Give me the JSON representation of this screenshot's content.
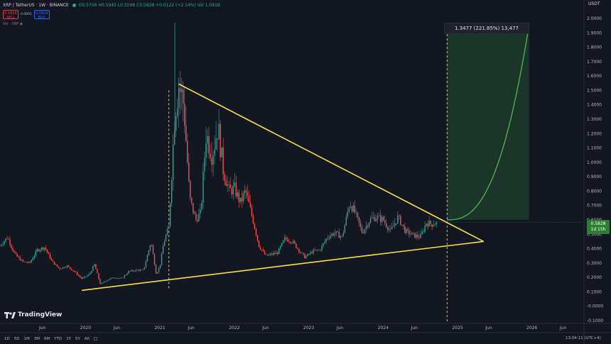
{
  "header": {
    "title": "XRP / TetherUS · 1W · BINANCE",
    "ohlc": "O0.5706 H0.5945 L0.5598 C0.5828 +0.0122 (+2.14%) Vol 1.091B"
  },
  "trade": {
    "sell_price": "0.5828",
    "sell_label": "SELL",
    "spread": "0.0001",
    "buy_price": "0.5829",
    "buy_label": "BUY"
  },
  "volume_label": "Vol · XRP",
  "currency": "USDT",
  "projection_label": "1.3477 (221.85%) 13,477",
  "last_price": {
    "value": "0.5828",
    "countdown": "1d 15h"
  },
  "brand": "TradingView",
  "range_buttons": [
    "1D",
    "5D",
    "1M",
    "3M",
    "6M",
    "YTD",
    "1Y",
    "5Y",
    "All"
  ],
  "clock": "13:04:11 (UTC+4)",
  "colors": {
    "up": "#26a69a",
    "down": "#ef5350",
    "trend": "#f5e14c",
    "projection_fill": "#1f3b2c",
    "projection_curve": "#4caf50"
  },
  "icons": [
    "eye-icon",
    "calendar-icon",
    "tradingview-logo-icon"
  ],
  "chart_data": {
    "type": "candlestick",
    "y_ticks": [
      "2.0000",
      "1.9000",
      "1.8000",
      "1.7000",
      "1.6000",
      "1.5000",
      "1.4000",
      "1.3000",
      "1.2000",
      "1.1000",
      "1.0000",
      "0.9000",
      "0.8000",
      "0.7000",
      "0.6000",
      "0.5000",
      "0.4000",
      "0.3000",
      "0.2000",
      "0.1000",
      "-0.0000",
      "-0.1000"
    ],
    "y_values": [
      2.0,
      1.9,
      1.8,
      1.7,
      1.6,
      1.5,
      1.4,
      1.3,
      1.2,
      1.1,
      1.0,
      0.9,
      0.8,
      0.7,
      0.6,
      0.5,
      0.4,
      0.3,
      0.2,
      0.1,
      0.0,
      -0.1
    ],
    "ylim": [
      -0.1,
      2.0
    ],
    "x_ticks": [
      {
        "label": "Jun",
        "t": 2019.42
      },
      {
        "label": "2020",
        "t": 2020.0
      },
      {
        "label": "Jun",
        "t": 2020.42
      },
      {
        "label": "2021",
        "t": 2021.0
      },
      {
        "label": "Jun",
        "t": 2021.42
      },
      {
        "label": "2022",
        "t": 2022.0
      },
      {
        "label": "Jun",
        "t": 2022.42
      },
      {
        "label": "2023",
        "t": 2023.0
      },
      {
        "label": "Jun",
        "t": 2023.42
      },
      {
        "label": "2024",
        "t": 2024.0
      },
      {
        "label": "Jun",
        "t": 2024.42
      },
      {
        "label": "2025",
        "t": 2025.0
      },
      {
        "label": "Jun",
        "t": 2025.42
      },
      {
        "label": "2026",
        "t": 2026.0
      },
      {
        "label": "Jun",
        "t": 2026.42
      }
    ],
    "price_path": [
      [
        2018.85,
        0.42
      ],
      [
        2018.95,
        0.48
      ],
      [
        2019.05,
        0.36
      ],
      [
        2019.15,
        0.31
      ],
      [
        2019.25,
        0.3
      ],
      [
        2019.35,
        0.39
      ],
      [
        2019.45,
        0.41
      ],
      [
        2019.55,
        0.31
      ],
      [
        2019.65,
        0.26
      ],
      [
        2019.75,
        0.28
      ],
      [
        2019.85,
        0.24
      ],
      [
        2019.95,
        0.19
      ],
      [
        2020.05,
        0.22
      ],
      [
        2020.12,
        0.29
      ],
      [
        2020.2,
        0.15
      ],
      [
        2020.28,
        0.18
      ],
      [
        2020.38,
        0.2
      ],
      [
        2020.48,
        0.19
      ],
      [
        2020.58,
        0.24
      ],
      [
        2020.68,
        0.25
      ],
      [
        2020.78,
        0.25
      ],
      [
        2020.88,
        0.45
      ],
      [
        2020.95,
        0.22
      ],
      [
        2021.0,
        0.28
      ],
      [
        2021.05,
        0.44
      ],
      [
        2021.12,
        0.55
      ],
      [
        2021.2,
        1.35
      ],
      [
        2021.25,
        1.55
      ],
      [
        2021.32,
        1.4
      ],
      [
        2021.4,
        0.75
      ],
      [
        2021.48,
        0.6
      ],
      [
        2021.55,
        0.65
      ],
      [
        2021.62,
        1.2
      ],
      [
        2021.7,
        1.05
      ],
      [
        2021.78,
        1.25
      ],
      [
        2021.85,
        0.95
      ],
      [
        2021.93,
        0.8
      ],
      [
        2022.0,
        0.82
      ],
      [
        2022.08,
        0.72
      ],
      [
        2022.15,
        0.8
      ],
      [
        2022.25,
        0.6
      ],
      [
        2022.33,
        0.42
      ],
      [
        2022.42,
        0.35
      ],
      [
        2022.5,
        0.36
      ],
      [
        2022.58,
        0.37
      ],
      [
        2022.68,
        0.47
      ],
      [
        2022.78,
        0.45
      ],
      [
        2022.88,
        0.38
      ],
      [
        2022.95,
        0.34
      ],
      [
        2023.05,
        0.38
      ],
      [
        2023.15,
        0.39
      ],
      [
        2023.25,
        0.48
      ],
      [
        2023.35,
        0.51
      ],
      [
        2023.45,
        0.48
      ],
      [
        2023.55,
        0.72
      ],
      [
        2023.62,
        0.65
      ],
      [
        2023.72,
        0.51
      ],
      [
        2023.82,
        0.6
      ],
      [
        2023.9,
        0.62
      ],
      [
        2024.0,
        0.6
      ],
      [
        2024.1,
        0.52
      ],
      [
        2024.2,
        0.62
      ],
      [
        2024.3,
        0.52
      ],
      [
        2024.42,
        0.49
      ],
      [
        2024.5,
        0.48
      ],
      [
        2024.58,
        0.58
      ],
      [
        2024.65,
        0.57
      ],
      [
        2024.72,
        0.5828
      ]
    ],
    "trendlines": [
      {
        "from": [
          2021.25,
          1.545
        ],
        "to": [
          2025.35,
          0.45
        ]
      },
      {
        "from": [
          2019.95,
          0.11
        ],
        "to": [
          2025.35,
          0.45
        ]
      }
    ],
    "projection": {
      "from_t": 2024.86,
      "to_t": 2025.96,
      "from_price": 0.6,
      "to_price": 1.95,
      "label_value": 1.3477,
      "label_percent": 221.85
    }
  }
}
